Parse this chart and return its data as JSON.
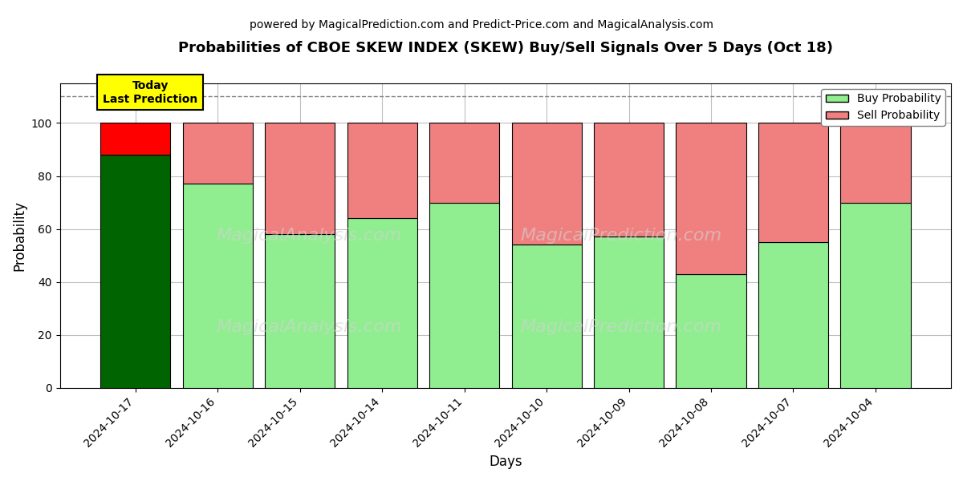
{
  "title": "Probabilities of CBOE SKEW INDEX (SKEW) Buy/Sell Signals Over 5 Days (Oct 18)",
  "subtitle": "powered by MagicalPrediction.com and Predict-Price.com and MagicalAnalysis.com",
  "xlabel": "Days",
  "ylabel": "Probability",
  "dates": [
    "2024-10-17",
    "2024-10-16",
    "2024-10-15",
    "2024-10-14",
    "2024-10-11",
    "2024-10-10",
    "2024-10-09",
    "2024-10-08",
    "2024-10-07",
    "2024-10-04"
  ],
  "buy_values": [
    88,
    77,
    58,
    64,
    70,
    54,
    57,
    43,
    55,
    70
  ],
  "sell_values": [
    12,
    23,
    42,
    36,
    30,
    46,
    43,
    57,
    45,
    30
  ],
  "buy_colors": [
    "#006400",
    "#90EE90",
    "#90EE90",
    "#90EE90",
    "#90EE90",
    "#90EE90",
    "#90EE90",
    "#90EE90",
    "#90EE90",
    "#90EE90"
  ],
  "sell_colors": [
    "#FF0000",
    "#F08080",
    "#F08080",
    "#F08080",
    "#F08080",
    "#F08080",
    "#F08080",
    "#F08080",
    "#F08080",
    "#F08080"
  ],
  "legend_buy_color": "#90EE90",
  "legend_sell_color": "#F08080",
  "today_box_color": "#FFFF00",
  "today_text": "Today\nLast Prediction",
  "ylim": [
    0,
    115
  ],
  "yticks": [
    0,
    20,
    40,
    60,
    80,
    100
  ],
  "dashed_line_y": 110,
  "background_color": "#ffffff",
  "bar_edgecolor": "#000000",
  "bar_width": 0.85
}
